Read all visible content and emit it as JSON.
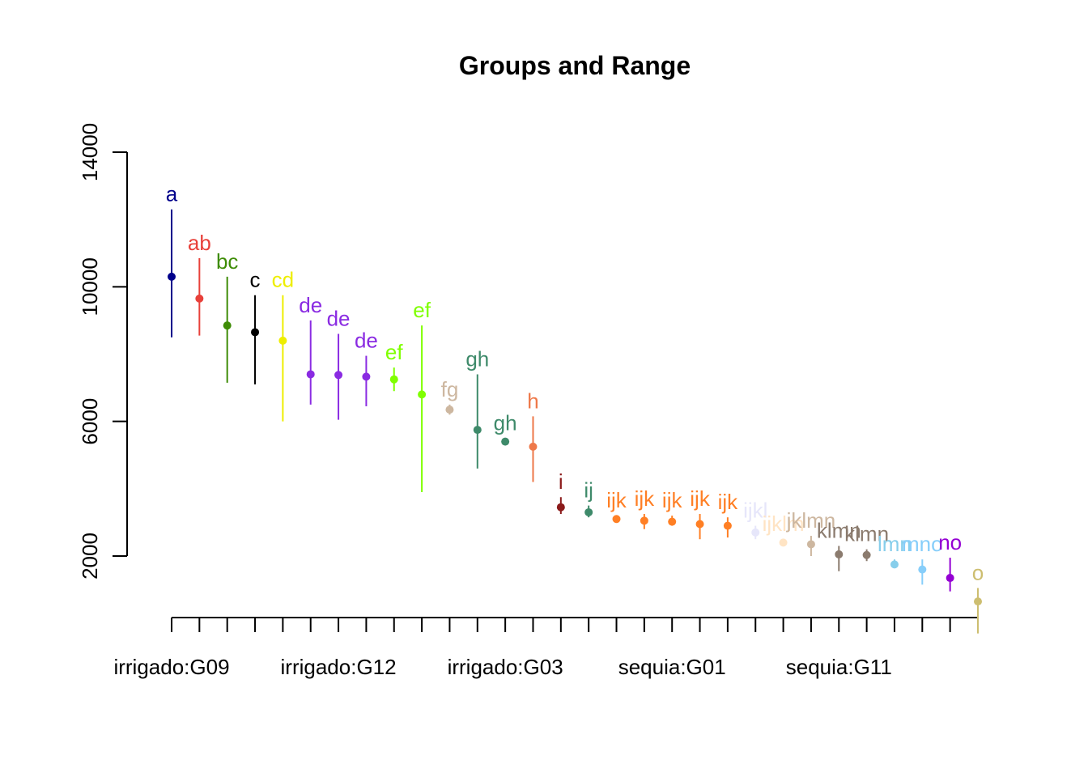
{
  "chart_data": {
    "type": "scatter",
    "title": "Groups and Range",
    "xlabel": "",
    "ylabel": "",
    "ylim": [
      -300,
      14800
    ],
    "y_ticks": [
      2000,
      6000,
      10000,
      14000
    ],
    "y_tick_labels": [
      "2000",
      "6000",
      "10000",
      "14000"
    ],
    "x_tick_positions": [
      1,
      7,
      13,
      19,
      25
    ],
    "x_tick_labels": [
      "irrigado:G09",
      "irrigado:G12",
      "irrigado:G03",
      "sequia:G01",
      "sequia:G11"
    ],
    "n_ticks": 30,
    "grid": false,
    "points": [
      {
        "x": 1,
        "mean": 10300,
        "lower": 8500,
        "upper": 12300,
        "group": "a",
        "color": "#00008B"
      },
      {
        "x": 2,
        "mean": 9650,
        "lower": 8550,
        "upper": 10850,
        "group": "ab",
        "color": "#E8403A"
      },
      {
        "x": 3,
        "mean": 8850,
        "lower": 7150,
        "upper": 10300,
        "group": "bc",
        "color": "#3E8C06"
      },
      {
        "x": 4,
        "mean": 8650,
        "lower": 7100,
        "upper": 9750,
        "group": "c",
        "color": "#000000"
      },
      {
        "x": 5,
        "mean": 8400,
        "lower": 6000,
        "upper": 9750,
        "group": "cd",
        "color": "#EEEE00"
      },
      {
        "x": 6,
        "mean": 7400,
        "lower": 6500,
        "upper": 9000,
        "group": "de",
        "color": "#8A2BE2"
      },
      {
        "x": 7,
        "mean": 7380,
        "lower": 6050,
        "upper": 8600,
        "group": "de",
        "color": "#8A2BE2"
      },
      {
        "x": 8,
        "mean": 7330,
        "lower": 6450,
        "upper": 7950,
        "group": "de",
        "color": "#8A2BE2"
      },
      {
        "x": 9,
        "mean": 7250,
        "lower": 6900,
        "upper": 7600,
        "group": "ef",
        "color": "#7FFF00"
      },
      {
        "x": 10,
        "mean": 6800,
        "lower": 3900,
        "upper": 8850,
        "group": "ef",
        "color": "#7FFF00"
      },
      {
        "x": 11,
        "mean": 6350,
        "lower": 6200,
        "upper": 6500,
        "group": "fg",
        "color": "#CDB7A0"
      },
      {
        "x": 12,
        "mean": 5750,
        "lower": 4600,
        "upper": 7400,
        "group": "gh",
        "color": "#3E8A6A"
      },
      {
        "x": 13,
        "mean": 5400,
        "lower": 5350,
        "upper": 5500,
        "group": "gh",
        "color": "#3E8A6A"
      },
      {
        "x": 14,
        "mean": 5250,
        "lower": 4200,
        "upper": 6150,
        "group": "h",
        "color": "#EE7849"
      },
      {
        "x": 15,
        "mean": 3450,
        "lower": 3250,
        "upper": 3750,
        "group": "i",
        "color": "#8B1A1A"
      },
      {
        "x": 16,
        "mean": 3300,
        "lower": 3150,
        "upper": 3500,
        "group": "ij",
        "color": "#3E8A6A"
      },
      {
        "x": 17,
        "mean": 3100,
        "lower": 3000,
        "upper": 3200,
        "group": "ijk",
        "color": "#FF7F24"
      },
      {
        "x": 18,
        "mean": 3050,
        "lower": 2800,
        "upper": 3250,
        "group": "ijk",
        "color": "#FF7F24"
      },
      {
        "x": 19,
        "mean": 3020,
        "lower": 2900,
        "upper": 3200,
        "group": "ijk",
        "color": "#FF7F24"
      },
      {
        "x": 20,
        "mean": 2950,
        "lower": 2500,
        "upper": 3250,
        "group": "ijk",
        "color": "#FF7F24"
      },
      {
        "x": 21,
        "mean": 2900,
        "lower": 2550,
        "upper": 3150,
        "group": "ijk",
        "color": "#FF7F24"
      },
      {
        "x": 22,
        "mean": 2700,
        "lower": 2500,
        "upper": 2900,
        "group": "ijkl",
        "color": "#E6E6FA"
      },
      {
        "x": 23,
        "mean": 2400,
        "lower": 2350,
        "upper": 2500,
        "group": "ijklm",
        "color": "#FFE4C4"
      },
      {
        "x": 24,
        "mean": 2350,
        "lower": 2000,
        "upper": 2600,
        "group": "jklmn",
        "color": "#CDB7A0"
      },
      {
        "x": 25,
        "mean": 2050,
        "lower": 1550,
        "upper": 2300,
        "group": "klmn",
        "color": "#8B7B6E"
      },
      {
        "x": 26,
        "mean": 2030,
        "lower": 1850,
        "upper": 2200,
        "group": "klmn",
        "color": "#8B7B6E"
      },
      {
        "x": 27,
        "mean": 1750,
        "lower": 1650,
        "upper": 1900,
        "group": "lmn",
        "color": "#87CEEB"
      },
      {
        "x": 28,
        "mean": 1600,
        "lower": 1150,
        "upper": 1900,
        "group": "mno",
        "color": "#87CEFA"
      },
      {
        "x": 29,
        "mean": 1350,
        "lower": 950,
        "upper": 1950,
        "group": "no",
        "color": "#9400D3"
      },
      {
        "x": 30,
        "mean": 650,
        "lower": -300,
        "upper": 1050,
        "group": "o",
        "color": "#CDBE70"
      }
    ]
  }
}
